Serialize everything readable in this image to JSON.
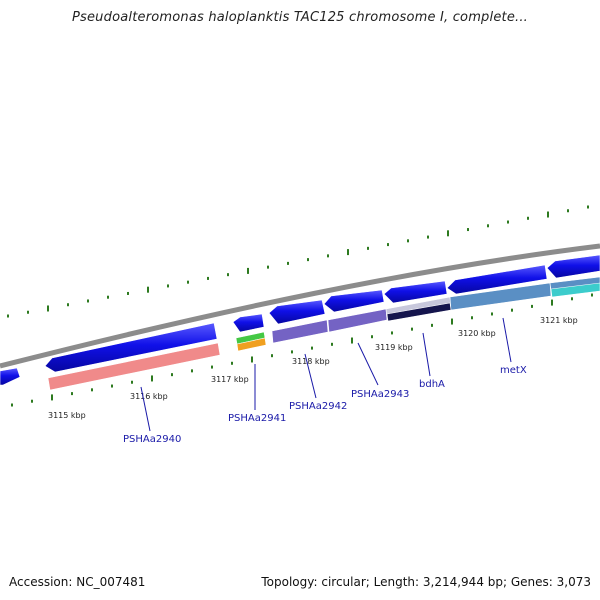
{
  "title": "Pseudoalteromonas haloplanktis TAC125 chromosome I, complete...",
  "kbp_labels": [
    "3115 kbp",
    "3116 kbp",
    "3117 kbp",
    "3118 kbp",
    "3119 kbp",
    "3120 kbp",
    "3121 kbp"
  ],
  "genes": [
    "PSHAa2940",
    "PSHAa2941",
    "PSHAa2942",
    "PSHAa2943",
    "bdhA",
    "metX"
  ],
  "footer": {
    "accession": "Accession: NC_007481",
    "summary": "Topology: circular; Length: 3,214,944 bp; Genes: 3,073"
  },
  "colors": {
    "backbone": "#8c8c8c",
    "tick": "#2d7a1f",
    "arrow": "#1212e6",
    "label": "#1a1aa8",
    "cog_pink": "#f08a8a",
    "cog_purple": "#7463c4",
    "cog_navy": "#15154d",
    "cog_steel": "#5a8fc4",
    "cog_cyan": "#3ccccc",
    "cog_green": "#44c844",
    "cog_orange": "#f0a020"
  }
}
